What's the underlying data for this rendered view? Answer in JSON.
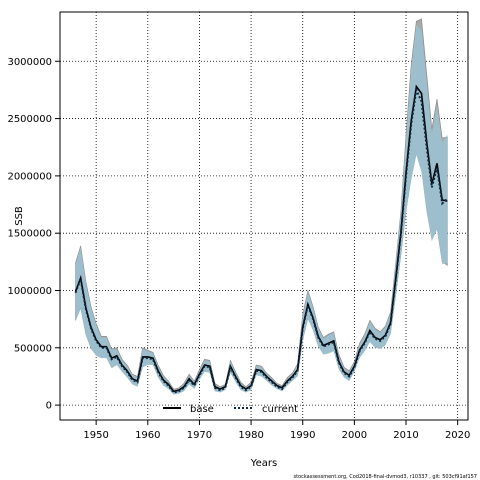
{
  "chart_data": {
    "type": "line",
    "xlabel": "Years",
    "ylabel": "SSB",
    "xlim": [
      1943,
      2022
    ],
    "ylim": [
      -130000,
      3430000
    ],
    "grid": true,
    "legend_position": "bottom-left",
    "x_ticks": [
      1950,
      1960,
      1970,
      1980,
      1990,
      2000,
      2010,
      2020
    ],
    "y_ticks": [
      0,
      500000,
      1000000,
      1500000,
      2000000,
      2500000,
      3000000
    ],
    "x_tick_labels": [
      "1950",
      "1960",
      "1970",
      "1980",
      "1990",
      "2000",
      "2010",
      "2020"
    ],
    "y_tick_labels": [
      "0",
      "500000",
      "1000000",
      "1500000",
      "2000000",
      "2500000",
      "3000000"
    ],
    "colors": {
      "base_band": "#a9a9a9",
      "current_band": "#9ac0d0",
      "base_line": "#000000",
      "current_line": "#0a2a40"
    },
    "years": [
      1946,
      1947,
      1948,
      1949,
      1950,
      1951,
      1952,
      1953,
      1954,
      1955,
      1956,
      1957,
      1958,
      1959,
      1960,
      1961,
      1962,
      1963,
      1964,
      1965,
      1966,
      1967,
      1968,
      1969,
      1970,
      1971,
      1972,
      1973,
      1974,
      1975,
      1976,
      1977,
      1978,
      1979,
      1980,
      1981,
      1982,
      1983,
      1984,
      1985,
      1986,
      1987,
      1988,
      1989,
      1990,
      1991,
      1992,
      1993,
      1994,
      1995,
      1996,
      1997,
      1998,
      1999,
      2000,
      2001,
      2002,
      2003,
      2004,
      2005,
      2006,
      2007,
      2008,
      2009,
      2010,
      2011,
      2012,
      2013,
      2014,
      2015,
      2016,
      2017,
      2018
    ],
    "series": [
      {
        "name": "base",
        "values": [
          990000,
          1110000,
          850000,
          680000,
          570000,
          510000,
          510000,
          410000,
          430000,
          350000,
          300000,
          230000,
          210000,
          420000,
          420000,
          410000,
          300000,
          220000,
          180000,
          120000,
          130000,
          160000,
          230000,
          180000,
          270000,
          350000,
          340000,
          160000,
          140000,
          160000,
          340000,
          250000,
          170000,
          140000,
          170000,
          310000,
          300000,
          250000,
          210000,
          170000,
          150000,
          210000,
          250000,
          310000,
          680000,
          880000,
          760000,
          600000,
          520000,
          540000,
          560000,
          380000,
          290000,
          260000,
          340000,
          480000,
          550000,
          650000,
          590000,
          570000,
          610000,
          720000,
          1100000,
          1500000,
          2030000,
          2480000,
          2780000,
          2720000,
          2300000,
          1930000,
          2110000,
          1790000,
          1780000
        ],
        "lower": [
          740000,
          850000,
          620000,
          500000,
          440000,
          420000,
          420000,
          330000,
          360000,
          300000,
          250000,
          190000,
          170000,
          340000,
          360000,
          360000,
          250000,
          180000,
          150000,
          100000,
          110000,
          130000,
          190000,
          150000,
          230000,
          300000,
          290000,
          130000,
          120000,
          140000,
          290000,
          210000,
          140000,
          120000,
          140000,
          270000,
          260000,
          220000,
          180000,
          150000,
          130000,
          180000,
          220000,
          260000,
          570000,
          760000,
          660000,
          520000,
          450000,
          460000,
          480000,
          320000,
          250000,
          220000,
          300000,
          420000,
          480000,
          560000,
          510000,
          500000,
          530000,
          630000,
          960000,
          1310000,
          1700000,
          1990000,
          2210000,
          2070000,
          1710000,
          1450000,
          1550000,
          1250000,
          1220000
        ],
        "upper": [
          1240000,
          1390000,
          1080000,
          860000,
          710000,
          600000,
          600000,
          490000,
          500000,
          400000,
          350000,
          270000,
          250000,
          500000,
          480000,
          460000,
          350000,
          260000,
          210000,
          140000,
          150000,
          190000,
          270000,
          210000,
          310000,
          400000,
          390000,
          190000,
          160000,
          180000,
          390000,
          290000,
          200000,
          160000,
          200000,
          350000,
          340000,
          280000,
          240000,
          190000,
          170000,
          240000,
          280000,
          360000,
          790000,
          1000000,
          860000,
          680000,
          590000,
          620000,
          640000,
          440000,
          330000,
          300000,
          380000,
          540000,
          620000,
          740000,
          670000,
          640000,
          690000,
          810000,
          1240000,
          1690000,
          2360000,
          2970000,
          3350000,
          3370000,
          2890000,
          2410000,
          2670000,
          2330000,
          2340000
        ]
      },
      {
        "name": "current",
        "values": [
          980000,
          1100000,
          840000,
          670000,
          560000,
          500000,
          500000,
          400000,
          420000,
          340000,
          290000,
          220000,
          200000,
          410000,
          410000,
          400000,
          290000,
          210000,
          170000,
          110000,
          120000,
          150000,
          220000,
          170000,
          260000,
          340000,
          330000,
          150000,
          130000,
          150000,
          330000,
          240000,
          160000,
          130000,
          160000,
          300000,
          290000,
          240000,
          200000,
          160000,
          140000,
          200000,
          240000,
          300000,
          670000,
          870000,
          750000,
          590000,
          510000,
          530000,
          550000,
          370000,
          280000,
          250000,
          330000,
          470000,
          540000,
          640000,
          580000,
          560000,
          600000,
          710000,
          1090000,
          1490000,
          2000000,
          2450000,
          2750000,
          2650000,
          2250000,
          1900000,
          2070000,
          1760000,
          1800000
        ],
        "lower": [
          730000,
          840000,
          610000,
          490000,
          430000,
          410000,
          410000,
          320000,
          350000,
          290000,
          240000,
          180000,
          160000,
          330000,
          350000,
          350000,
          240000,
          170000,
          140000,
          90000,
          100000,
          120000,
          180000,
          140000,
          220000,
          290000,
          280000,
          120000,
          110000,
          130000,
          280000,
          200000,
          130000,
          110000,
          130000,
          260000,
          250000,
          210000,
          170000,
          140000,
          120000,
          170000,
          210000,
          250000,
          560000,
          750000,
          650000,
          510000,
          440000,
          450000,
          470000,
          310000,
          240000,
          210000,
          290000,
          410000,
          470000,
          550000,
          500000,
          490000,
          520000,
          620000,
          950000,
          1300000,
          1680000,
          1960000,
          2180000,
          2030000,
          1680000,
          1430000,
          1530000,
          1230000,
          1240000
        ],
        "upper": [
          1230000,
          1380000,
          1070000,
          850000,
          700000,
          590000,
          590000,
          480000,
          490000,
          390000,
          340000,
          260000,
          240000,
          490000,
          470000,
          450000,
          340000,
          250000,
          200000,
          130000,
          140000,
          180000,
          260000,
          200000,
          300000,
          390000,
          380000,
          180000,
          150000,
          170000,
          380000,
          280000,
          190000,
          150000,
          190000,
          340000,
          330000,
          270000,
          230000,
          180000,
          160000,
          230000,
          270000,
          350000,
          780000,
          990000,
          850000,
          670000,
          580000,
          610000,
          630000,
          430000,
          320000,
          290000,
          370000,
          530000,
          610000,
          730000,
          660000,
          630000,
          680000,
          800000,
          1230000,
          1680000,
          2320000,
          2940000,
          3320000,
          3270000,
          2820000,
          2370000,
          2610000,
          2290000,
          2360000
        ]
      }
    ],
    "legend": [
      {
        "label": "base",
        "style": "solid"
      },
      {
        "label": "current",
        "style": "dotted"
      }
    ],
    "footnote": "stockassessment.org, Cod2018-final-dvmod3, r10337 ,  git: 503cf91af157"
  }
}
